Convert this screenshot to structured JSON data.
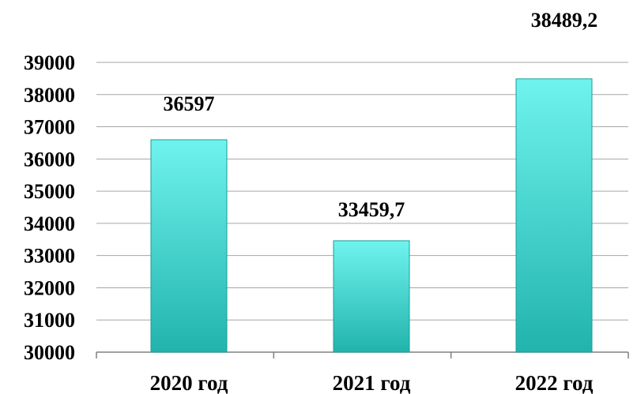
{
  "chart_data": {
    "type": "bar",
    "title": "",
    "xlabel": "",
    "ylabel": "",
    "categories": [
      "2020 год",
      "2021 год",
      "2022 год"
    ],
    "values": [
      36597,
      33459.7,
      38489.2
    ],
    "data_labels": [
      "36597",
      "33459,7",
      "38489,2"
    ],
    "ylim": [
      30000,
      39000
    ],
    "yticks": [
      30000,
      31000,
      32000,
      33000,
      34000,
      35000,
      36000,
      37000,
      38000,
      39000
    ],
    "ytick_labels": [
      "30000",
      "31000",
      "32000",
      "33000",
      "34000",
      "35000",
      "36000",
      "37000",
      "38000",
      "39000"
    ],
    "grid": true,
    "legend": "none",
    "colors": {
      "bar_top": "#6ff3ee",
      "bar_bottom": "#22b3ad",
      "bar_edge": "#1a9e99",
      "grid": "#a6a6a6",
      "axis": "#808080"
    }
  }
}
